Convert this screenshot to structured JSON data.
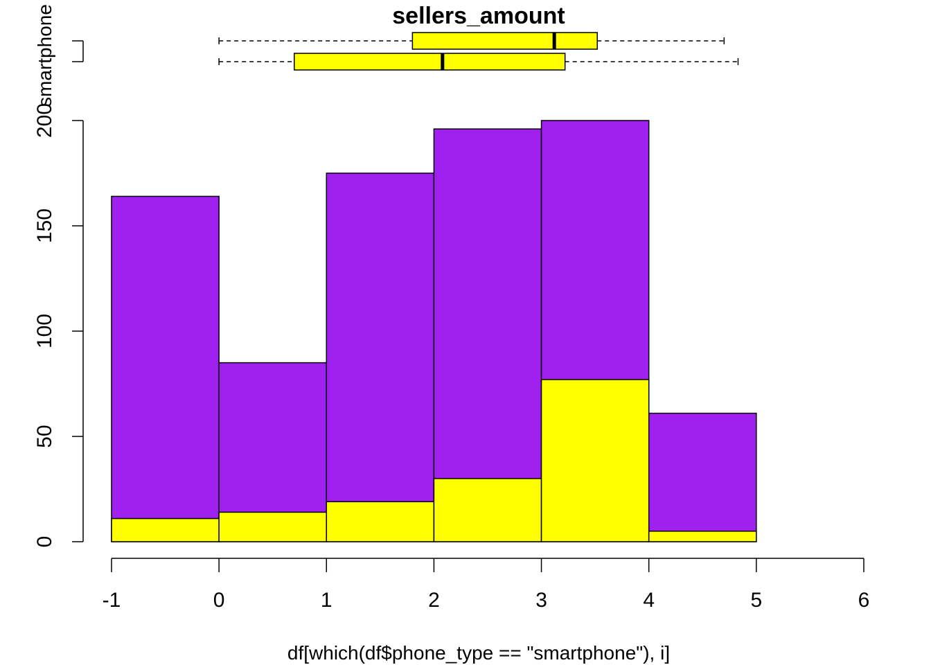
{
  "chart_data": {
    "type": "bar",
    "title": "sellers_amount",
    "xlabel": "df[which(df$phone_type == \"smartphone\"), i]",
    "ylabel": "",
    "top_axis_label": "smartphone",
    "xlim": [
      -1,
      6
    ],
    "ylim": [
      0,
      200
    ],
    "x_ticks": [
      "-1",
      "0",
      "1",
      "2",
      "3",
      "4",
      "5",
      "6"
    ],
    "y_ticks": [
      "0",
      "50",
      "100",
      "150",
      "200"
    ],
    "bins": [
      [
        -1,
        0
      ],
      [
        0,
        1
      ],
      [
        1,
        2
      ],
      [
        2,
        3
      ],
      [
        3,
        4
      ],
      [
        4,
        5
      ]
    ],
    "series": [
      {
        "values": [
          164,
          85,
          175,
          196,
          200,
          61
        ],
        "color": "#A020F0"
      },
      {
        "values": [
          11,
          14,
          19,
          30,
          77,
          5
        ],
        "color": "#FFFF00"
      }
    ],
    "boxplots": [
      {
        "min": 0.0,
        "q1": 1.8,
        "median": 3.12,
        "q3": 3.52,
        "max": 4.7,
        "color": "#FFFF00"
      },
      {
        "min": 0.0,
        "q1": 0.7,
        "median": 2.08,
        "q3": 3.22,
        "max": 4.83,
        "color": "#FFFF00"
      }
    ]
  }
}
